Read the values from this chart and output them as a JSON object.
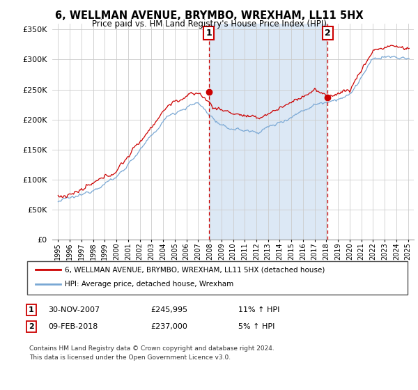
{
  "title": "6, WELLMAN AVENUE, BRYMBO, WREXHAM, LL11 5HX",
  "subtitle": "Price paid vs. HM Land Registry's House Price Index (HPI)",
  "legend_line1": "6, WELLMAN AVENUE, BRYMBO, WREXHAM, LL11 5HX (detached house)",
  "legend_line2": "HPI: Average price, detached house, Wrexham",
  "footnote": "Contains HM Land Registry data © Crown copyright and database right 2024.\nThis data is licensed under the Open Government Licence v3.0.",
  "transaction1_date": "30-NOV-2007",
  "transaction1_price": "£245,995",
  "transaction1_hpi": "11% ↑ HPI",
  "transaction2_date": "09-FEB-2018",
  "transaction2_price": "£237,000",
  "transaction2_hpi": "5% ↑ HPI",
  "vline1_x": 2007.92,
  "vline2_x": 2018.1,
  "marker1_price": 245995,
  "marker2_price": 237000,
  "ylim_min": 0,
  "ylim_max": 360000,
  "xlim_min": 1994.5,
  "xlim_max": 2025.5,
  "background_color": "#ffffff",
  "shaded_region_color": "#dce8f5",
  "red_color": "#cc0000",
  "blue_color": "#7aa8d4",
  "grid_color": "#cccccc",
  "vline_color": "#cc0000",
  "title_fontsize": 11,
  "subtitle_fontsize": 9
}
